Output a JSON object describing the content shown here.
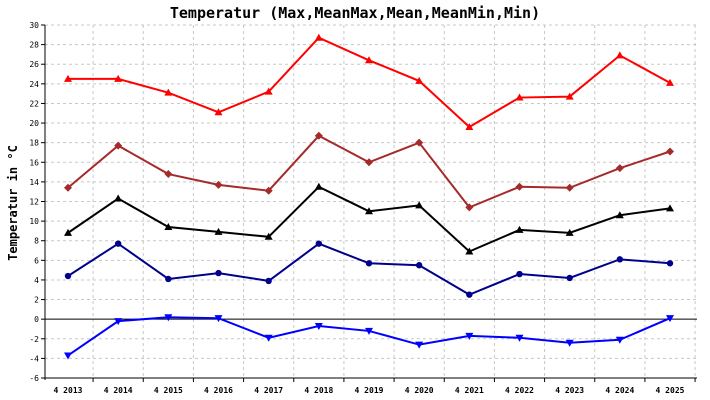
{
  "chart_data": {
    "type": "line",
    "title": "Temperatur (Max,MeanMax,Mean,MeanMin,Min)",
    "ylabel": "Temperatur in °C",
    "xlabel": "",
    "categories": [
      "4 2013",
      "4 2014",
      "4 2015",
      "4 2016",
      "4 2017",
      "4 2018",
      "4 2019",
      "4 2020",
      "4 2021",
      "4 2022",
      "4 2023",
      "4 2024",
      "4 2025"
    ],
    "ylim": [
      -6,
      30
    ],
    "ytick_step": 2,
    "grid": true,
    "legend": "none",
    "series": [
      {
        "key": "max",
        "color": "#ff0000",
        "marker": "triangle-up",
        "values": [
          24.5,
          24.5,
          23.1,
          21.1,
          23.2,
          28.7,
          26.4,
          24.3,
          19.6,
          22.6,
          22.7,
          26.9,
          24.1
        ]
      },
      {
        "key": "meanmax",
        "color": "#a52a2a",
        "marker": "diamond",
        "values": [
          13.4,
          17.7,
          14.8,
          13.7,
          13.1,
          18.7,
          16.0,
          18.0,
          11.4,
          13.5,
          13.4,
          15.4,
          17.1
        ]
      },
      {
        "key": "mean",
        "color": "#000000",
        "marker": "triangle-up",
        "values": [
          8.8,
          12.3,
          9.4,
          8.9,
          8.4,
          13.5,
          11.0,
          11.6,
          6.9,
          9.1,
          8.8,
          10.6,
          11.3
        ]
      },
      {
        "key": "meanmin",
        "color": "#00008b",
        "marker": "circle",
        "values": [
          4.4,
          7.7,
          4.1,
          4.7,
          3.9,
          7.7,
          5.7,
          5.5,
          2.5,
          4.6,
          4.2,
          6.1,
          5.7
        ]
      },
      {
        "key": "min",
        "color": "#0000ff",
        "marker": "triangle-down",
        "values": [
          -3.7,
          -0.2,
          0.2,
          0.1,
          -1.9,
          -0.7,
          -1.2,
          -2.6,
          -1.7,
          -1.9,
          -2.4,
          -2.1,
          0.1
        ]
      }
    ]
  }
}
